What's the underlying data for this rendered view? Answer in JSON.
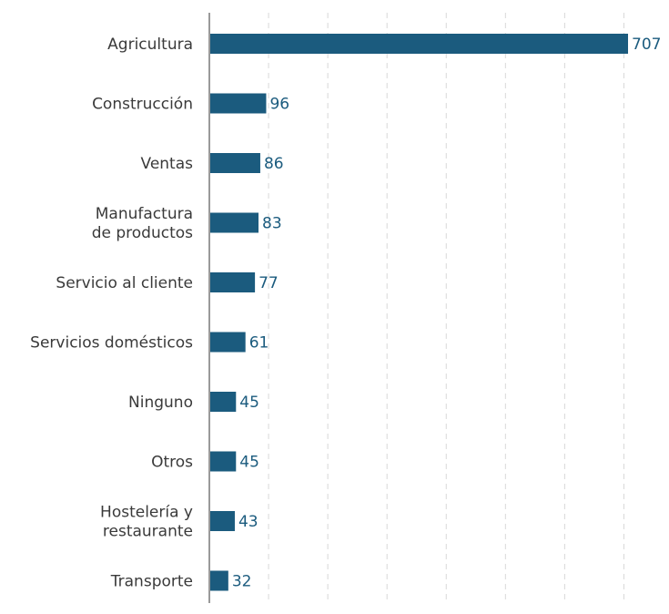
{
  "chart_data": {
    "type": "bar",
    "orientation": "horizontal",
    "title": "",
    "xlabel": "",
    "ylabel": "",
    "categories": [
      "Agricultura",
      "Construcción",
      "Ventas",
      "Manufactura de productos",
      "Servicio al cliente",
      "Servicios domésticos",
      "Ninguno",
      "Otros",
      "Hostelería y restaurante",
      "Transporte"
    ],
    "category_lines": [
      [
        "Agricultura"
      ],
      [
        "Construcción"
      ],
      [
        "Ventas"
      ],
      [
        "Manufactura",
        "de productos"
      ],
      [
        "Servicio al cliente"
      ],
      [
        "Servicios domésticos"
      ],
      [
        "Ninguno"
      ],
      [
        "Otros"
      ],
      [
        "Hostelería y",
        "restaurante"
      ],
      [
        "Transporte"
      ]
    ],
    "values": [
      707,
      96,
      86,
      83,
      77,
      61,
      45,
      45,
      43,
      32
    ],
    "xlim": [
      0,
      707
    ],
    "grid": true,
    "grid_step": 100,
    "data_labels": true,
    "bar_color": "#1b5b7e"
  }
}
